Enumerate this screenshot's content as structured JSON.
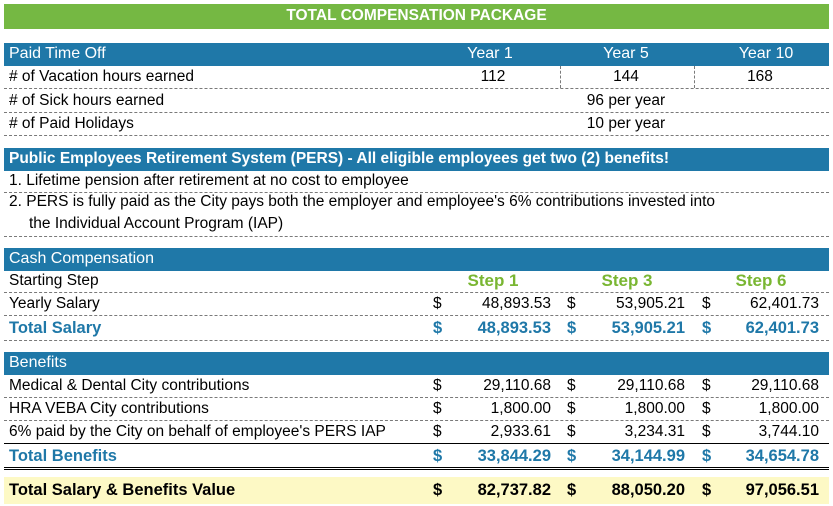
{
  "title": "TOTAL COMPENSATION PACKAGE",
  "pto": {
    "header": "Paid Time Off",
    "years": [
      "Year 1",
      "Year 5",
      "Year 10"
    ],
    "rows": [
      {
        "label": "# of Vacation hours earned",
        "values": [
          "112",
          "144",
          "168"
        ]
      },
      {
        "label": "# of Sick hours earned",
        "value": "96 per year"
      },
      {
        "label": "# of Paid Holidays",
        "value": "10 per year"
      }
    ]
  },
  "pers": {
    "header": "Public Employees Retirement System (PERS) - All eligible employees get two (2) benefits!",
    "item1": "1. Lifetime pension after retirement at no cost to employee",
    "item2a": "2.  PERS is fully paid as the City pays both the employer and employee's 6% contributions invested into",
    "item2b": "the Individual Account Program (IAP)"
  },
  "cash": {
    "header": "Cash Compensation",
    "starting_step_label": "Starting Step",
    "steps": [
      "Step 1",
      "Step 3",
      "Step 6"
    ],
    "yearly_label": "Yearly Salary",
    "yearly": [
      "48,893.53",
      "53,905.21",
      "62,401.73"
    ],
    "total_label": "Total Salary",
    "total": [
      "48,893.53",
      "53,905.21",
      "62,401.73"
    ]
  },
  "benefits": {
    "header": "Benefits",
    "rows": [
      {
        "label": "Medical & Dental City contributions",
        "values": [
          "29,110.68",
          "29,110.68",
          "29,110.68"
        ]
      },
      {
        "label": "HRA VEBA City contributions",
        "values": [
          "1,800.00",
          "1,800.00",
          "1,800.00"
        ]
      },
      {
        "label": "6% paid by the City on behalf of employee's PERS IAP",
        "values": [
          "2,933.61",
          "3,234.31",
          "3,744.10"
        ]
      }
    ],
    "total_label": "Total Benefits",
    "total": [
      "33,844.29",
      "34,144.99",
      "34,654.78"
    ]
  },
  "grand": {
    "label": "Total Salary & Benefits Value",
    "values": [
      "82,737.82",
      "88,050.20",
      "97,056.51"
    ]
  },
  "currency": "$"
}
